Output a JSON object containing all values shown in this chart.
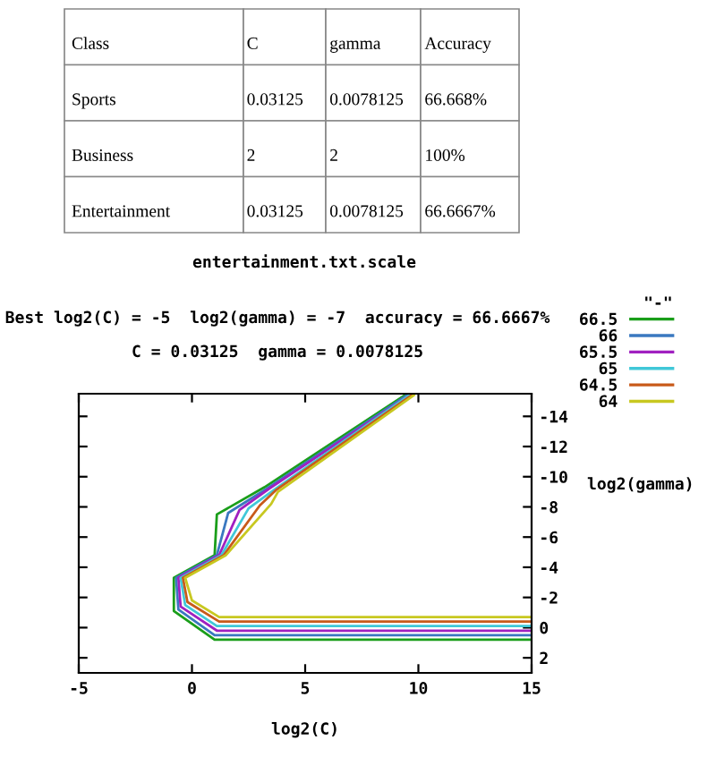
{
  "chart_data": [
    {
      "type": "other",
      "annotations": [
        "Class",
        "C",
        "gamma",
        "Accuracy",
        "Sports",
        "0.03125",
        "0.0078125",
        "66.668%",
        "Business",
        "2",
        "2",
        "100%",
        "Entertainment",
        "0.03125",
        "0.0078125",
        "66.6667%"
      ]
    },
    {
      "type": "line",
      "title": "entertainment.txt.scale",
      "subtitle": "Best log2(C) = -5  log2(gamma) = -7  accuracy = 66.6667%\nC = 0.03125  gamma = 0.0078125",
      "xlabel": "log2(C)",
      "ylabel": "log2(gamma)",
      "legend_title": "\"-\"",
      "legend": "top right",
      "grid": false,
      "xlim": [
        -5,
        15
      ],
      "xticks": [
        -5,
        0,
        5,
        10,
        15
      ],
      "ylim": [
        3,
        -15.5
      ],
      "yticks": [
        2,
        0,
        -2,
        -4,
        -6,
        -8,
        -10,
        -12,
        -14
      ],
      "series": [
        {
          "name": "66.5",
          "color": "#1a9e1a",
          "x": [
            15,
            1,
            -0.8,
            -0.8,
            1,
            1.1,
            3.2,
            9.4
          ],
          "values": [
            0.8,
            0.8,
            -1.1,
            -3.3,
            -4.8,
            -7.5,
            -9.3,
            -15.4
          ]
        },
        {
          "name": "66",
          "color": "#3a78c0",
          "x": [
            15,
            1,
            -0.6,
            -0.7,
            1.1,
            1.6,
            3.3,
            9.5
          ],
          "values": [
            0.5,
            0.5,
            -1.2,
            -3.3,
            -4.8,
            -7.6,
            -9.2,
            -15.4
          ]
        },
        {
          "name": "65.5",
          "color": "#a020c0",
          "x": [
            15,
            1.1,
            -0.5,
            -0.6,
            1.2,
            2.1,
            3.4,
            9.6
          ],
          "values": [
            0.2,
            0.2,
            -1.4,
            -3.3,
            -4.8,
            -7.8,
            -9.2,
            -15.4
          ]
        },
        {
          "name": "65",
          "color": "#40c8d8",
          "x": [
            15,
            1.1,
            -0.3,
            -0.5,
            1.3,
            2.5,
            3.6,
            9.6
          ],
          "values": [
            -0.1,
            -0.1,
            -1.5,
            -3.3,
            -4.8,
            -7.9,
            -9.1,
            -15.4
          ]
        },
        {
          "name": "64.5",
          "color": "#c85a1a",
          "x": [
            15,
            1.2,
            -0.2,
            -0.4,
            1.4,
            3,
            3.7,
            9.7
          ],
          "values": [
            -0.4,
            -0.4,
            -1.7,
            -3.3,
            -4.8,
            -8.1,
            -9.1,
            -15.4
          ]
        },
        {
          "name": "64",
          "color": "#c8c820",
          "x": [
            15,
            1.2,
            0,
            -0.3,
            1.5,
            3.5,
            3.8,
            9.8
          ],
          "values": [
            -0.7,
            -0.7,
            -1.8,
            -3.3,
            -4.8,
            -8.2,
            -9,
            -15.4
          ]
        }
      ]
    }
  ]
}
